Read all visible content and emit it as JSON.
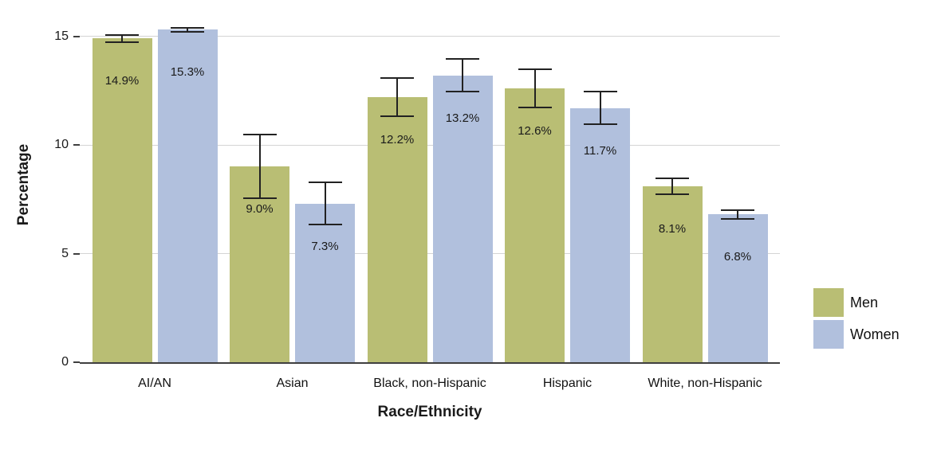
{
  "chart_data": {
    "type": "bar",
    "title": "",
    "xlabel": "Race/Ethnicity",
    "ylabel": "Percentage",
    "categories": [
      "AI/AN",
      "Asian",
      "Black, non-Hispanic",
      "Hispanic",
      "White, non-Hispanic"
    ],
    "series": [
      {
        "name": "Men",
        "color": "#b9be74",
        "values": [
          14.9,
          9.0,
          12.2,
          12.6,
          8.1
        ],
        "errors": [
          0.2,
          1.5,
          0.9,
          0.9,
          0.4
        ]
      },
      {
        "name": "Women",
        "color": "#b1c0dd",
        "values": [
          15.3,
          7.3,
          13.2,
          11.7,
          6.8
        ],
        "errors": [
          0.12,
          1.0,
          0.8,
          0.8,
          0.25
        ]
      }
    ],
    "value_suffix": "%",
    "yticks": [
      0,
      5,
      10,
      15
    ],
    "ylim": [
      0,
      16.3
    ],
    "grid": true,
    "legend_position": "right",
    "colors": {
      "men_bar": "#b9be74",
      "women_bar": "#b1c0dd",
      "gridline": "#d4d4d4",
      "axis_line": "#3f3f3f",
      "error_bar": "#222222",
      "text": "#1a1a1a",
      "background": "#ffffff"
    }
  }
}
